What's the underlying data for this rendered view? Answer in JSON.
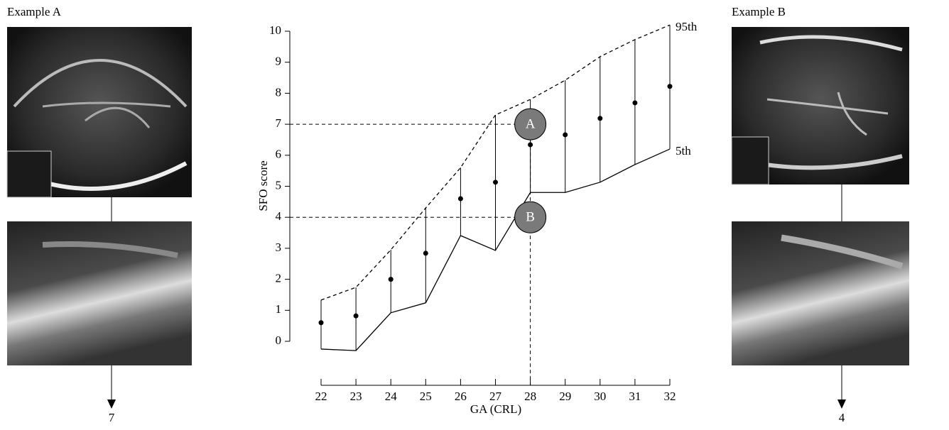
{
  "chart_data": {
    "type": "percentile",
    "x_label": "GA (CRL)",
    "y_label": "SFO score",
    "x": [
      22,
      23,
      24,
      25,
      26,
      27,
      28,
      29,
      30,
      31,
      32
    ],
    "values": [
      0.6,
      0.82,
      2.0,
      2.84,
      4.6,
      5.13,
      6.34,
      6.66,
      7.19,
      7.69,
      8.22
    ],
    "color": "#000000",
    "series": [
      {
        "name": "95th",
        "color": "#000000",
        "dashed": true,
        "values": [
          1.33,
          1.74,
          2.95,
          4.3,
          5.6,
          7.3,
          7.8,
          8.42,
          9.18,
          9.73,
          10.2
        ]
      },
      {
        "name": "5th",
        "color": "#000000",
        "dashed": false,
        "values": [
          -0.25,
          -0.3,
          0.92,
          1.24,
          3.41,
          2.93,
          4.8,
          4.8,
          5.13,
          5.7,
          6.2
        ]
      }
    ],
    "annotations": [
      {
        "label": "A",
        "x": 28,
        "y": 7
      },
      {
        "label": "B",
        "x": 28,
        "y": 4
      }
    ],
    "xlim": [
      22,
      32
    ],
    "xticks": [
      22,
      23,
      24,
      25,
      26,
      27,
      28,
      29,
      30,
      31,
      32
    ],
    "ylim": [
      0,
      10
    ],
    "yticks": [
      0,
      1,
      2,
      3,
      4,
      5,
      6,
      7,
      8,
      9,
      10
    ]
  },
  "panels": [
    {
      "title": "Example A",
      "score": 7
    },
    {
      "title": "Example B",
      "score": 4
    }
  ]
}
